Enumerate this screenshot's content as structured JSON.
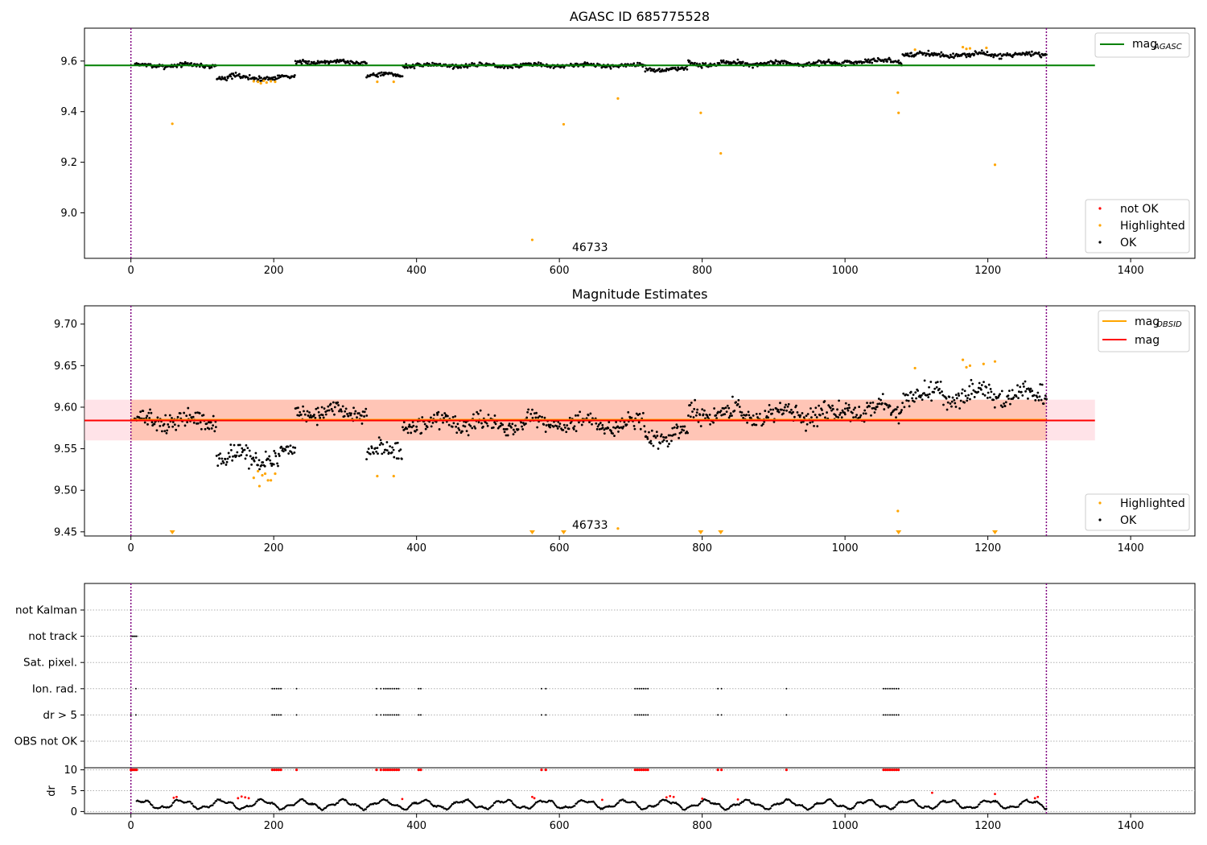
{
  "colors": {
    "ok": "#000000",
    "highlighted": "#ffa500",
    "not_ok": "#ff0000",
    "mag_agasc_line": "#008000",
    "mag_obsid_line": "#ffa500",
    "mag_line": "#ff0000",
    "band_outer": "#ffc0cb",
    "band_inner": "#ffa07a",
    "boundary": "#800080",
    "grid": "#b0b0b0"
  },
  "chart_data": [
    {
      "type": "scatter",
      "title": "AGASC ID 685775528",
      "xlim": [
        -65,
        1490
      ],
      "ylim": [
        8.82,
        9.73
      ],
      "xticks": [
        0,
        200,
        400,
        600,
        800,
        1000,
        1200,
        1400
      ],
      "yticks": [
        9.0,
        9.2,
        9.4,
        9.6
      ],
      "ytick_labels": [
        "9.0",
        "9.2",
        "9.4",
        "9.6"
      ],
      "boundaries": [
        0,
        1282
      ],
      "annotations": [
        {
          "text": "46733",
          "x": 620,
          "y": 8.84
        }
      ],
      "legend_upper": [
        {
          "label": "mag",
          "subscript": "AGASC",
          "color": "#008000"
        }
      ],
      "legend_lower": [
        {
          "label": "not OK",
          "color": "#ff0000"
        },
        {
          "label": "Highlighted",
          "color": "#ffa500"
        },
        {
          "label": "OK",
          "color": "#000000"
        }
      ],
      "mag_agasc": 9.583,
      "agasc_line_x": [
        -65,
        1350
      ],
      "ok_segments": [
        {
          "x0": 5,
          "x1": 120,
          "center": 9.583,
          "amp": 0.012
        },
        {
          "x0": 120,
          "x1": 230,
          "center": 9.535,
          "amp": 0.015
        },
        {
          "x0": 230,
          "x1": 330,
          "center": 9.597,
          "amp": 0.012
        },
        {
          "x0": 330,
          "x1": 380,
          "center": 9.545,
          "amp": 0.012
        },
        {
          "x0": 380,
          "x1": 720,
          "center": 9.583,
          "amp": 0.012
        },
        {
          "x0": 720,
          "x1": 780,
          "center": 9.567,
          "amp": 0.012
        },
        {
          "x0": 780,
          "x1": 1000,
          "center": 9.59,
          "amp": 0.015
        },
        {
          "x0": 1000,
          "x1": 1080,
          "center": 9.6,
          "amp": 0.015
        },
        {
          "x0": 1080,
          "x1": 1282,
          "center": 9.625,
          "amp": 0.015
        }
      ],
      "highlighted_points": [
        {
          "x": 58,
          "y": 9.352
        },
        {
          "x": 172,
          "y": 9.52
        },
        {
          "x": 178,
          "y": 9.518
        },
        {
          "x": 182,
          "y": 9.512
        },
        {
          "x": 186,
          "y": 9.522
        },
        {
          "x": 190,
          "y": 9.515
        },
        {
          "x": 196,
          "y": 9.52
        },
        {
          "x": 202,
          "y": 9.518
        },
        {
          "x": 345,
          "y": 9.518
        },
        {
          "x": 368,
          "y": 9.518
        },
        {
          "x": 562,
          "y": 8.893
        },
        {
          "x": 606,
          "y": 9.35
        },
        {
          "x": 682,
          "y": 9.452
        },
        {
          "x": 798,
          "y": 9.395
        },
        {
          "x": 826,
          "y": 9.235
        },
        {
          "x": 1074,
          "y": 9.475
        },
        {
          "x": 1075,
          "y": 9.395
        },
        {
          "x": 1098,
          "y": 9.645
        },
        {
          "x": 1165,
          "y": 9.655
        },
        {
          "x": 1170,
          "y": 9.648
        },
        {
          "x": 1175,
          "y": 9.65
        },
        {
          "x": 1198,
          "y": 9.652
        },
        {
          "x": 1210,
          "y": 9.19
        }
      ]
    },
    {
      "type": "scatter",
      "title": "Magnitude Estimates",
      "xlim": [
        -65,
        1490
      ],
      "ylim": [
        9.445,
        9.722
      ],
      "xticks": [
        0,
        200,
        400,
        600,
        800,
        1000,
        1200,
        1400
      ],
      "yticks": [
        9.45,
        9.5,
        9.55,
        9.6,
        9.65,
        9.7
      ],
      "ytick_labels": [
        "9.45",
        "9.50",
        "9.55",
        "9.60",
        "9.65",
        "9.70"
      ],
      "boundaries": [
        0,
        1282
      ],
      "annotations": [
        {
          "text": "46733",
          "x": 620,
          "y": 9.448
        }
      ],
      "legend_upper": [
        {
          "label": "mag",
          "subscript": "OBSID",
          "color": "#ffa500"
        },
        {
          "label": "mag",
          "subscript": "",
          "color": "#ff0000"
        }
      ],
      "legend_lower": [
        {
          "label": "Highlighted",
          "color": "#ffa500"
        },
        {
          "label": "OK",
          "color": "#000000"
        }
      ],
      "mag": 9.584,
      "mag_obsid": 9.585,
      "band_outer": [
        9.56,
        9.609
      ],
      "band_outer_x": [
        -65,
        1350
      ],
      "band_inner": [
        9.56,
        9.609
      ],
      "band_inner_x": [
        0,
        1282
      ],
      "ok_segments": [
        {
          "x0": 5,
          "x1": 120,
          "center": 9.583,
          "amp": 0.015
        },
        {
          "x0": 120,
          "x1": 230,
          "center": 9.54,
          "amp": 0.017
        },
        {
          "x0": 230,
          "x1": 330,
          "center": 9.594,
          "amp": 0.015
        },
        {
          "x0": 330,
          "x1": 380,
          "center": 9.548,
          "amp": 0.017
        },
        {
          "x0": 380,
          "x1": 720,
          "center": 9.58,
          "amp": 0.016
        },
        {
          "x0": 720,
          "x1": 780,
          "center": 9.566,
          "amp": 0.015
        },
        {
          "x0": 780,
          "x1": 1000,
          "center": 9.592,
          "amp": 0.018
        },
        {
          "x0": 1000,
          "x1": 1080,
          "center": 9.598,
          "amp": 0.018
        },
        {
          "x0": 1080,
          "x1": 1282,
          "center": 9.615,
          "amp": 0.018
        }
      ],
      "highlighted_points": [
        {
          "x": 172,
          "y": 9.515
        },
        {
          "x": 178,
          "y": 9.523
        },
        {
          "x": 180,
          "y": 9.505
        },
        {
          "x": 184,
          "y": 9.518
        },
        {
          "x": 188,
          "y": 9.52
        },
        {
          "x": 192,
          "y": 9.512
        },
        {
          "x": 196,
          "y": 9.512
        },
        {
          "x": 202,
          "y": 9.52
        },
        {
          "x": 345,
          "y": 9.517
        },
        {
          "x": 368,
          "y": 9.517
        },
        {
          "x": 682,
          "y": 9.454
        },
        {
          "x": 1074,
          "y": 9.475
        },
        {
          "x": 1098,
          "y": 9.647
        },
        {
          "x": 1165,
          "y": 9.657
        },
        {
          "x": 1170,
          "y": 9.648
        },
        {
          "x": 1175,
          "y": 9.65
        },
        {
          "x": 1194,
          "y": 9.652
        },
        {
          "x": 1210,
          "y": 9.655
        }
      ],
      "below_range_markers": [
        58,
        562,
        606,
        798,
        826,
        1075,
        1210
      ]
    },
    {
      "type": "scatter",
      "title": "",
      "xlim": [
        -65,
        1490
      ],
      "xticks": [
        0,
        200,
        400,
        600,
        800,
        1000,
        1200,
        1400
      ],
      "boundaries": [
        0,
        1282
      ],
      "flag_categories": [
        "not Kalman",
        "not track",
        "Sat. pixel.",
        "Ion. rad.",
        "dr > 5",
        "OBS not OK"
      ],
      "flags": {
        "not track": [
          0,
          2,
          4,
          6,
          8
        ],
        "Ion. rad.": [
          7,
          198,
          201,
          204,
          207,
          210,
          232,
          344,
          350,
          354,
          357,
          360,
          363,
          366,
          369,
          372,
          375,
          403,
          406,
          575,
          581,
          706,
          709,
          712,
          715,
          718,
          721,
          724,
          822,
          827,
          918,
          1054,
          1057,
          1060,
          1063,
          1066,
          1069,
          1072,
          1075
        ],
        "dr > 5": [
          0,
          7,
          198,
          201,
          204,
          207,
          210,
          232,
          344,
          350,
          354,
          357,
          360,
          363,
          366,
          369,
          372,
          375,
          403,
          406,
          575,
          581,
          706,
          709,
          712,
          715,
          718,
          721,
          724,
          822,
          827,
          918,
          1054,
          1057,
          1060,
          1063,
          1066,
          1069,
          1072,
          1075
        ]
      },
      "dr": {
        "ylabel": "dr",
        "ylim": [
          -0.5,
          10.5
        ],
        "yticks": [
          0,
          5,
          10
        ],
        "ytick_labels": [
          "0",
          "5",
          "10"
        ],
        "clip_value": 10,
        "clipped_x": [
          0,
          2,
          4,
          6,
          8,
          198,
          201,
          204,
          207,
          210,
          232,
          344,
          350,
          354,
          357,
          360,
          363,
          366,
          369,
          372,
          375,
          403,
          406,
          575,
          581,
          706,
          709,
          712,
          715,
          718,
          721,
          724,
          822,
          827,
          918,
          1054,
          1057,
          1060,
          1063,
          1066,
          1069,
          1072,
          1075
        ],
        "red_points": [
          {
            "x": 60,
            "y": 3.3
          },
          {
            "x": 64,
            "y": 3.5
          },
          {
            "x": 150,
            "y": 3.2
          },
          {
            "x": 155,
            "y": 3.6
          },
          {
            "x": 160,
            "y": 3.4
          },
          {
            "x": 165,
            "y": 3.2
          },
          {
            "x": 380,
            "y": 3.0
          },
          {
            "x": 562,
            "y": 3.5
          },
          {
            "x": 565,
            "y": 3.2
          },
          {
            "x": 660,
            "y": 2.8
          },
          {
            "x": 750,
            "y": 3.4
          },
          {
            "x": 755,
            "y": 3.7
          },
          {
            "x": 760,
            "y": 3.5
          },
          {
            "x": 800,
            "y": 3.1
          },
          {
            "x": 850,
            "y": 2.9
          },
          {
            "x": 1122,
            "y": 4.5
          },
          {
            "x": 1210,
            "y": 4.2
          },
          {
            "x": 1266,
            "y": 3.2
          },
          {
            "x": 1270,
            "y": 3.5
          }
        ]
      }
    }
  ]
}
